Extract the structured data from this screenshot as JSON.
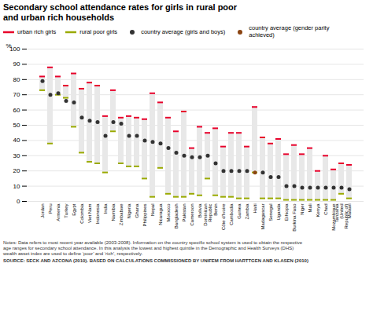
{
  "chart_data": {
    "type": "range",
    "title": "Secondary school attendance rates for girls in rural poor\nand urban rich households",
    "ylabel": "%",
    "categories": [
      "Jordan",
      "Peru",
      "Armenia",
      "Turkey",
      "Egypt",
      "Colombia",
      "Viet Nam",
      "Indonesia",
      "India",
      "Namibia",
      "Zimbabwe",
      "Nigeria",
      "Ghana",
      "Philippines",
      "Nepal",
      "Nicaragua",
      "Morocco",
      "Bangladesh",
      "Pakistan",
      "Cameroon",
      "Bolivia",
      "Dominican\nRepublic",
      "Benin",
      "Côte d'Ivoire",
      "Cambodia",
      "Guinea",
      "Zambia",
      "Haiti",
      "Madagascar",
      "Senegal",
      "Uganda",
      "Ethiopia",
      "Burkina Faso",
      "Niger",
      "Mali",
      "Kenya",
      "Chad",
      "Mozambique",
      "Tanzania\n(United\nRepublic of)",
      "Malawi"
    ],
    "color": "#e8e8e8",
    "series": [
      {
        "name": "urban rich girls",
        "type": "tick",
        "color": "#e8002a",
        "values": [
          82,
          88,
          82,
          76,
          84,
          74,
          78,
          76,
          56,
          73,
          55,
          56,
          55,
          54,
          71,
          65,
          55,
          46,
          59,
          35,
          49,
          45,
          48,
          36,
          45,
          45,
          36,
          62,
          42,
          38,
          41,
          31,
          37,
          31,
          35,
          20,
          30,
          21,
          25,
          24
        ]
      },
      {
        "name": "rural poor girls",
        "type": "tick",
        "color": "#9aaa00",
        "values": [
          73,
          38,
          70,
          68,
          49,
          32,
          26,
          25,
          19,
          46,
          25,
          23,
          23,
          15,
          3,
          22,
          5,
          3,
          3,
          5,
          4,
          15,
          4,
          3,
          3,
          2,
          2,
          19,
          2,
          2,
          2,
          1,
          1,
          1,
          1,
          1,
          1,
          1,
          5,
          2
        ]
      },
      {
        "name": "country average (girls and boys)",
        "type": "dot",
        "color": "#333333",
        "values": [
          79,
          70,
          71,
          66,
          65,
          55,
          53,
          52,
          43,
          52,
          51,
          43,
          43,
          40,
          39,
          38,
          35,
          32,
          30,
          29,
          29,
          30,
          25,
          20,
          20,
          20,
          20,
          null,
          19,
          16,
          16,
          10,
          10,
          9,
          9,
          9,
          9,
          9,
          9,
          8
        ]
      },
      {
        "name": "country average (gender parity\nachieved)",
        "type": "dot",
        "color": "#8B4513",
        "values": [
          null,
          null,
          null,
          null,
          null,
          null,
          null,
          null,
          null,
          null,
          null,
          null,
          null,
          null,
          null,
          null,
          null,
          null,
          null,
          null,
          null,
          null,
          null,
          null,
          null,
          null,
          null,
          19,
          null,
          null,
          null,
          null,
          null,
          null,
          null,
          null,
          null,
          null,
          null,
          null
        ]
      }
    ],
    "ylim": [
      0,
      100
    ],
    "yticks": [
      0,
      10,
      20,
      30,
      40,
      50,
      60,
      70,
      80,
      90,
      100
    ],
    "grid": true,
    "legend": "top",
    "annotations": [
      "Notes: Data refers to most recent year available (2003-2008). Information on the country specific school system is used to obtain the respective\nage ranges for secondary school attendance. In this analysis the lowest and highest quintile in the Demographic and Health Surveys (DHS)\nwealth asset index are used to define ‘poor’ and ‘rich’, respectively.",
      "SOURCE: SECK AND AZCONA (2010). BASED ON CALCULATIONS COMMISSIONED BY UNIFEM FROM HARTTGEN AND KLASEN (2010)"
    ]
  }
}
